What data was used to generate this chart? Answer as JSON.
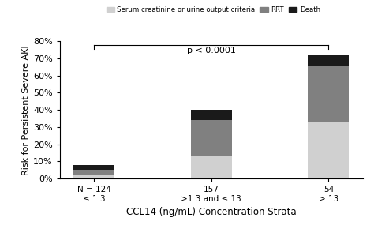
{
  "categories": [
    "N = 124\n≤ 1.3",
    "157\n>1.3 and ≤ 13",
    "54\n> 13"
  ],
  "serum_values": [
    2,
    13,
    33
  ],
  "rrt_values": [
    3,
    21,
    33
  ],
  "death_values": [
    3,
    6,
    6
  ],
  "colors": {
    "serum": "#d0d0d0",
    "rrt": "#808080",
    "death": "#1a1a1a"
  },
  "ylabel": "Risk for Persistent Severe AKI",
  "xlabel": "CCL14 (ng/mL) Concentration Strata",
  "ylim": [
    0,
    80
  ],
  "yticks": [
    0,
    10,
    20,
    30,
    40,
    50,
    60,
    70,
    80
  ],
  "ytick_labels": [
    "0%",
    "10%",
    "20%",
    "30%",
    "40%",
    "50%",
    "60%",
    "70%",
    "80%"
  ],
  "legend_labels": [
    "Serum creatinine or urine output criteria",
    "RRT",
    "Death"
  ],
  "pvalue_text": "p < 0.0001",
  "bar_width": 0.35
}
